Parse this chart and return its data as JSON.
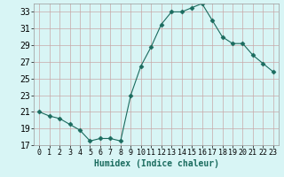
{
  "x": [
    0,
    1,
    2,
    3,
    4,
    5,
    6,
    7,
    8,
    9,
    10,
    11,
    12,
    13,
    14,
    15,
    16,
    17,
    18,
    19,
    20,
    21,
    22,
    23
  ],
  "y": [
    21.0,
    20.5,
    20.2,
    19.5,
    18.8,
    17.5,
    17.8,
    17.8,
    17.5,
    23.0,
    26.5,
    28.8,
    31.5,
    33.0,
    33.0,
    33.5,
    34.0,
    32.0,
    30.0,
    29.2,
    29.2,
    27.8,
    26.8,
    25.8
  ],
  "title": "",
  "xlabel": "Humidex (Indice chaleur)",
  "ylabel": "",
  "xlim": [
    -0.5,
    23.5
  ],
  "ylim": [
    17,
    34
  ],
  "yticks": [
    17,
    19,
    21,
    23,
    25,
    27,
    29,
    31,
    33
  ],
  "xticks": [
    0,
    1,
    2,
    3,
    4,
    5,
    6,
    7,
    8,
    9,
    10,
    11,
    12,
    13,
    14,
    15,
    16,
    17,
    18,
    19,
    20,
    21,
    22,
    23
  ],
  "xtick_labels": [
    "0",
    "1",
    "2",
    "3",
    "4",
    "5",
    "6",
    "7",
    "8",
    "9",
    "10",
    "11",
    "12",
    "13",
    "14",
    "15",
    "16",
    "17",
    "18",
    "19",
    "20",
    "21",
    "22",
    "23"
  ],
  "line_color": "#1a6b5e",
  "marker": "D",
  "marker_size": 2.5,
  "bg_color": "#d8f5f5",
  "grid_color_major": "#c8a8a8",
  "grid_color_minor": "#dac8c8",
  "tick_label_fontsize": 6,
  "xlabel_fontsize": 7
}
